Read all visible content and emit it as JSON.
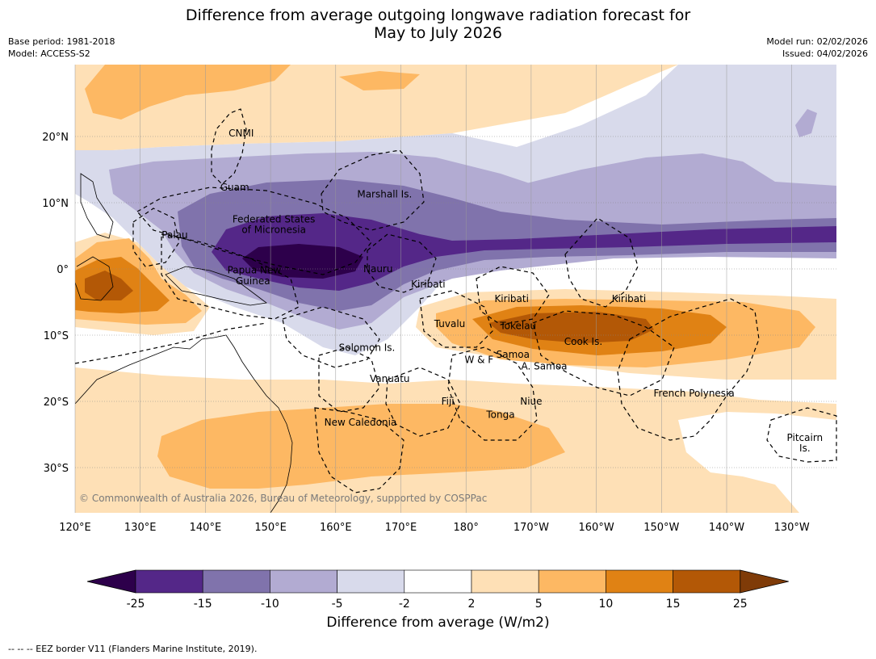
{
  "title_line1": "Difference from average outgoing longwave radiation forecast for",
  "title_line2": "May to July 2026",
  "meta_left": {
    "base_period": "Base period: 1981-2018",
    "model": "Model: ACCESS-S2"
  },
  "meta_right": {
    "model_run": "Model run: 02/02/2026",
    "issued": "Issued: 04/02/2026"
  },
  "lat_ticks": [
    {
      "label": "20°N",
      "lat": 20
    },
    {
      "label": "10°N",
      "lat": 10
    },
    {
      "label": "0°",
      "lat": 0
    },
    {
      "label": "10°S",
      "lat": -10
    },
    {
      "label": "20°S",
      "lat": -20
    },
    {
      "label": "30°S",
      "lat": -30
    }
  ],
  "lon_ticks": [
    {
      "label": "120°E",
      "lon": 120
    },
    {
      "label": "130°E",
      "lon": 130
    },
    {
      "label": "140°E",
      "lon": 140
    },
    {
      "label": "150°E",
      "lon": 150
    },
    {
      "label": "160°E",
      "lon": 160
    },
    {
      "label": "170°E",
      "lon": 170
    },
    {
      "label": "180°",
      "lon": 180
    },
    {
      "label": "170°W",
      "lon": 190
    },
    {
      "label": "160°W",
      "lon": 200
    },
    {
      "label": "150°W",
      "lon": 210
    },
    {
      "label": "140°W",
      "lon": 220
    },
    {
      "label": "130°W",
      "lon": 230
    }
  ],
  "places": [
    {
      "name": "CNMI",
      "lon": 145.5,
      "lat": 20.5
    },
    {
      "name": "Guam",
      "lon": 144.5,
      "lat": 12.3
    },
    {
      "name": "Marshall Is.",
      "lon": 167.5,
      "lat": 11.3
    },
    {
      "name": "Federated States",
      "lon": 150.5,
      "lat": 7.5
    },
    {
      "name": "of Micronesia",
      "lon": 150.5,
      "lat": 5.9
    },
    {
      "name": "Palau",
      "lon": 135.3,
      "lat": 5.1
    },
    {
      "name": "Papua New",
      "lon": 147.5,
      "lat": -0.2
    },
    {
      "name": "Guinea",
      "lon": 147.3,
      "lat": -1.8
    },
    {
      "name": "Nauru",
      "lon": 166.5,
      "lat": 0.0
    },
    {
      "name": "Kiribati",
      "lon": 174.2,
      "lat": -2.3
    },
    {
      "name": "Kiribati",
      "lon": 187.0,
      "lat": -4.5
    },
    {
      "name": "Kiribati",
      "lon": 205.0,
      "lat": -4.5
    },
    {
      "name": "Tuvalu",
      "lon": 177.5,
      "lat": -8.3
    },
    {
      "name": "Tokelau",
      "lon": 188.0,
      "lat": -8.6
    },
    {
      "name": "Cook Is.",
      "lon": 198.0,
      "lat": -11.0
    },
    {
      "name": "Solomon Is.",
      "lon": 164.8,
      "lat": -11.9
    },
    {
      "name": "W & F",
      "lon": 182.0,
      "lat": -13.7
    },
    {
      "name": "Samoa",
      "lon": 187.2,
      "lat": -12.9
    },
    {
      "name": "A. Samoa",
      "lon": 192.0,
      "lat": -14.7
    },
    {
      "name": "Vanuatu",
      "lon": 168.3,
      "lat": -16.6
    },
    {
      "name": "Fiji",
      "lon": 177.2,
      "lat": -20.0
    },
    {
      "name": "Niue",
      "lon": 190.0,
      "lat": -20.0
    },
    {
      "name": "Tonga",
      "lon": 185.3,
      "lat": -22.0
    },
    {
      "name": "French Polynesia",
      "lon": 215.0,
      "lat": -18.8
    },
    {
      "name": "New Caledonia",
      "lon": 163.8,
      "lat": -23.2
    },
    {
      "name": "Pitcairn",
      "lon": 232.0,
      "lat": -25.5
    },
    {
      "name": "Is.",
      "lon": 232.0,
      "lat": -27.1
    }
  ],
  "copyright": "© Commonwealth of Australia 2026, Bureau of Meteorology, supported by COSPPac",
  "colorbar": {
    "title": "Difference from average (W/m2)",
    "tick_labels": [
      "-25",
      "-15",
      "-10",
      "-5",
      "-2",
      "2",
      "5",
      "10",
      "15",
      "25"
    ],
    "colors": [
      "#2d004b",
      "#542788",
      "#8073ac",
      "#b2abd2",
      "#d8daeb",
      "#ffffff",
      "#fee0b6",
      "#fdb863",
      "#e08214",
      "#b35806",
      "#7f3b08"
    ]
  },
  "footer": "--  --  -- EEZ border V11 (Flanders Marine Institute, 2019)."
}
